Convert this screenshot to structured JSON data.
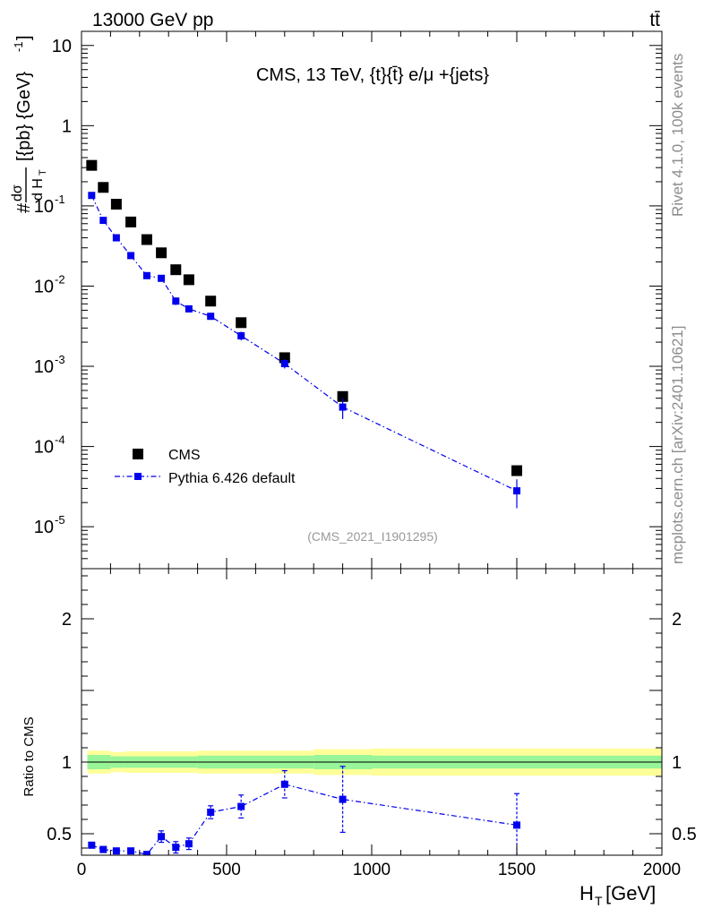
{
  "header": {
    "energy_label": "13000 GeV pp",
    "process_label": "tt̄"
  },
  "side_labels": {
    "rivet": "Rivet 4.1.0,  100k events",
    "source": "mcplots.cern.ch [arXiv:2401.10621]"
  },
  "chart_data": [
    {
      "type": "scatter",
      "panel": "main",
      "title": "CMS, 13 TeV, {t}{t̄} e/μ +{jets}",
      "analysis_id": "(CMS_2021_I1901295)",
      "yscale": "log",
      "ylabel": "#dσ/d H_T [{pb} {GeV}^-1]",
      "ylim": [
        3e-06,
        15
      ],
      "xlim": [
        0,
        2000
      ],
      "legend_position": "bottom-left",
      "y_tick_labels": [
        "10^-5",
        "10^-4",
        "10^-3",
        "10^-2",
        "10^-1",
        "1",
        "10"
      ],
      "series": [
        {
          "name": "CMS",
          "color": "#000000",
          "marker": "square",
          "x": [
            35,
            75,
            120,
            170,
            225,
            275,
            325,
            370,
            445,
            550,
            700,
            900,
            1500
          ],
          "y": [
            0.32,
            0.17,
            0.105,
            0.063,
            0.038,
            0.026,
            0.016,
            0.012,
            0.0065,
            0.0035,
            0.00128,
            0.00042,
            5e-05
          ]
        },
        {
          "name": "Pythia 6.426 default",
          "color": "#0000ee",
          "marker": "square",
          "line": "dash-dot",
          "x": [
            35,
            75,
            120,
            170,
            225,
            275,
            325,
            370,
            445,
            550,
            700,
            900,
            1500
          ],
          "y": [
            0.135,
            0.066,
            0.04,
            0.024,
            0.0135,
            0.0125,
            0.0065,
            0.0052,
            0.0042,
            0.0024,
            0.00108,
            0.00031,
            2.8e-05
          ],
          "y_err_low": [
            0.005,
            0.003,
            0.002,
            0.0012,
            0.0007,
            0.0009,
            0.0007,
            0.0005,
            0.0004,
            0.0003,
            0.00014,
            9e-05,
            1.1e-05
          ],
          "y_err_high": [
            0.005,
            0.003,
            0.002,
            0.0012,
            0.0007,
            0.0009,
            0.0007,
            0.0005,
            0.0004,
            0.0003,
            0.00014,
            9e-05,
            1.1e-05
          ]
        }
      ]
    },
    {
      "type": "scatter",
      "panel": "ratio",
      "ylabel": "Ratio to CMS",
      "xlabel": "H_T [GeV]",
      "xlim": [
        0,
        2000
      ],
      "ylim": [
        0.35,
        2.35
      ],
      "x_ticks": [
        0,
        500,
        1000,
        1500,
        2000
      ],
      "y_ticks": [
        0.5,
        1,
        2
      ],
      "reference_line": 1,
      "bands": {
        "inner_color": "#98f598",
        "outer_color": "#ffff99",
        "edges": [
          20,
          100,
          150,
          250,
          400,
          800,
          1000,
          2000
        ],
        "inner_lo": [
          0.95,
          0.96,
          0.96,
          0.96,
          0.955,
          0.95,
          0.955
        ],
        "inner_hi": [
          1.05,
          1.04,
          1.04,
          1.04,
          1.045,
          1.05,
          1.045
        ],
        "outer_lo": [
          0.92,
          0.93,
          0.925,
          0.925,
          0.92,
          0.91,
          0.905
        ],
        "outer_hi": [
          1.08,
          1.07,
          1.075,
          1.075,
          1.08,
          1.09,
          1.095
        ]
      },
      "series": [
        {
          "name": "Pythia 6.426 default / CMS",
          "color": "#0000ee",
          "x": [
            35,
            75,
            120,
            170,
            225,
            275,
            325,
            370,
            445,
            550,
            700,
            900,
            1500
          ],
          "y": [
            0.42,
            0.39,
            0.38,
            0.38,
            0.355,
            0.48,
            0.405,
            0.43,
            0.65,
            0.69,
            0.845,
            0.74,
            0.56
          ],
          "y_err_low": [
            0.015,
            0.015,
            0.015,
            0.015,
            0.02,
            0.04,
            0.04,
            0.04,
            0.045,
            0.08,
            0.095,
            0.23,
            0.22
          ],
          "y_err_high": [
            0.015,
            0.015,
            0.015,
            0.015,
            0.02,
            0.04,
            0.04,
            0.04,
            0.045,
            0.08,
            0.095,
            0.23,
            0.22
          ]
        }
      ]
    }
  ]
}
